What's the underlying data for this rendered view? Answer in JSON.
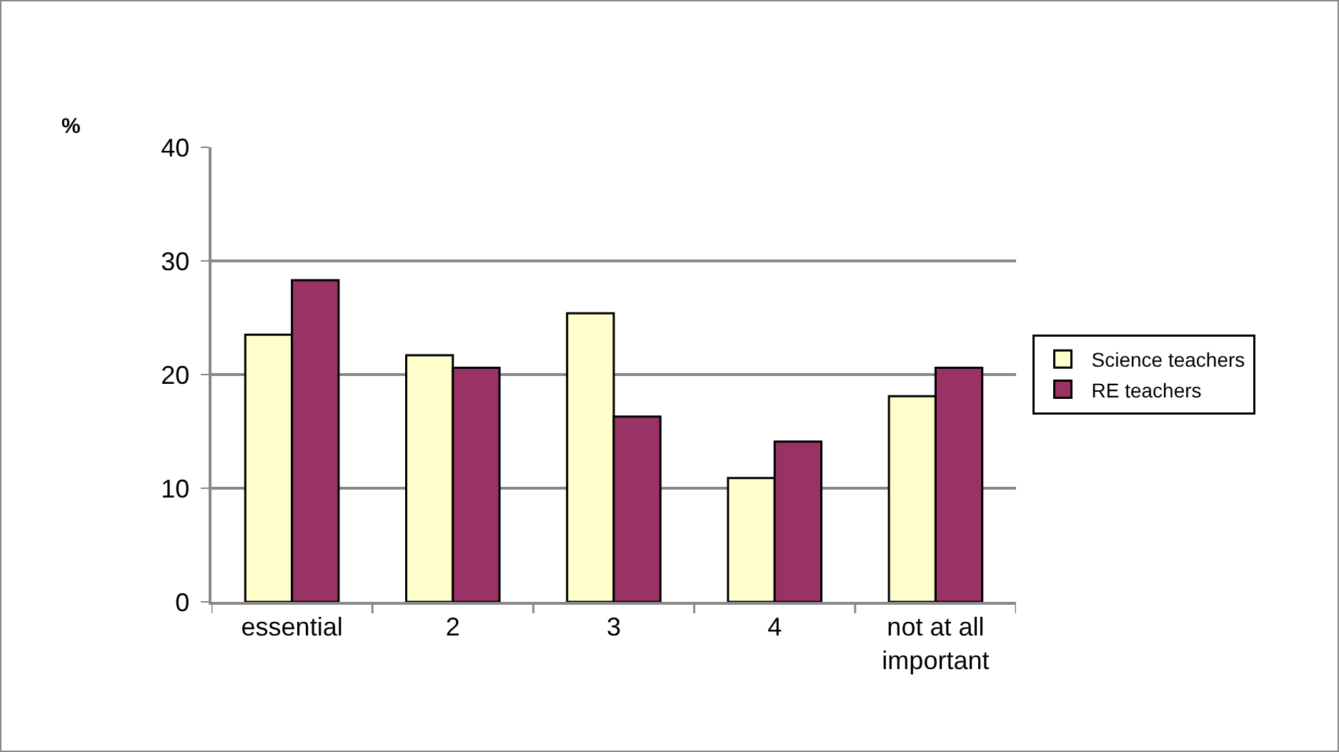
{
  "chart_data": {
    "type": "bar",
    "ylabel": "%",
    "categories": [
      "essential",
      "2",
      "3",
      "4",
      "not at all important"
    ],
    "series": [
      {
        "name": "Science teachers",
        "color": "#ffffcc",
        "values": [
          23.5,
          21.7,
          25.4,
          10.9,
          18.1
        ]
      },
      {
        "name": "RE teachers",
        "color": "#993366",
        "values": [
          28.3,
          20.6,
          16.3,
          14.1,
          20.6
        ]
      }
    ],
    "ylim": [
      0,
      40
    ],
    "yticks": [
      0,
      10,
      20,
      30,
      40
    ],
    "grid": "y",
    "legend": "right"
  }
}
